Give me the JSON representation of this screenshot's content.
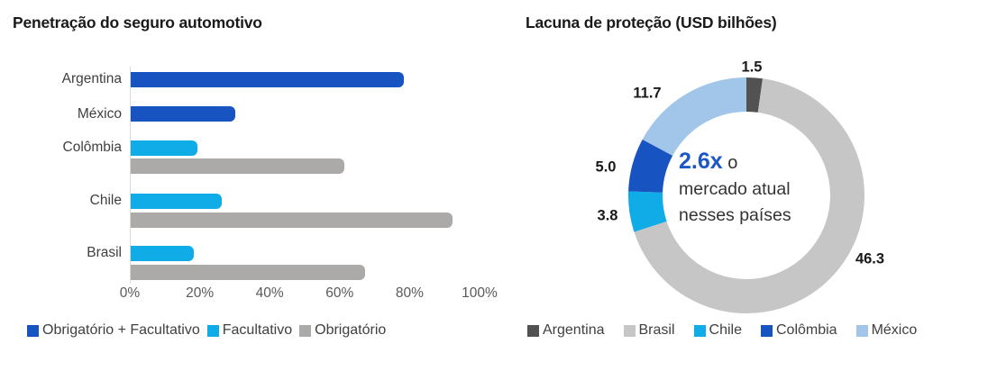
{
  "chart_data": [
    {
      "type": "bar",
      "orientation": "horizontal",
      "title": "Penetração do seguro automotivo",
      "categories": [
        "Argentina",
        "México",
        "Colômbia",
        "Chile",
        "Brasil"
      ],
      "series": [
        {
          "name": "Obrigatório + Facultativo",
          "color": "#1853c2",
          "values": [
            78,
            30,
            null,
            null,
            null
          ]
        },
        {
          "name": "Facultativo",
          "color": "#0face8",
          "values": [
            null,
            null,
            19,
            26,
            18
          ]
        },
        {
          "name": "Obrigatório",
          "color": "#aca9a9",
          "values": [
            null,
            null,
            61,
            92,
            67
          ]
        }
      ],
      "xlabel": "",
      "ylabel": "",
      "xlim": [
        0,
        100
      ],
      "x_ticks": [
        "0%",
        "20%",
        "40%",
        "60%",
        "80%",
        "100%"
      ],
      "grid": false,
      "legend_position": "bottom"
    },
    {
      "type": "pie",
      "subtype": "donut",
      "title": "Lacuna de proteção (USD bilhões)",
      "labels": [
        "Argentina",
        "Brasil",
        "Chile",
        "Colômbia",
        "México"
      ],
      "values": [
        1.5,
        46.3,
        3.8,
        5.0,
        11.7
      ],
      "data_labels": [
        "1.5",
        "46.3",
        "3.8",
        "5.0",
        "11.7"
      ],
      "colors": [
        "#525252",
        "#c7c6c6",
        "#0face8",
        "#1853c2",
        "#a1c6ea"
      ],
      "start_angle_deg": 0,
      "direction": "clockwise",
      "center_text": {
        "highlight": "2.6x",
        "after_highlight": " o",
        "line2": "mercado atual",
        "line3": "nesses países",
        "highlight_color": "#1c57c6"
      },
      "legend_position": "bottom"
    }
  ]
}
